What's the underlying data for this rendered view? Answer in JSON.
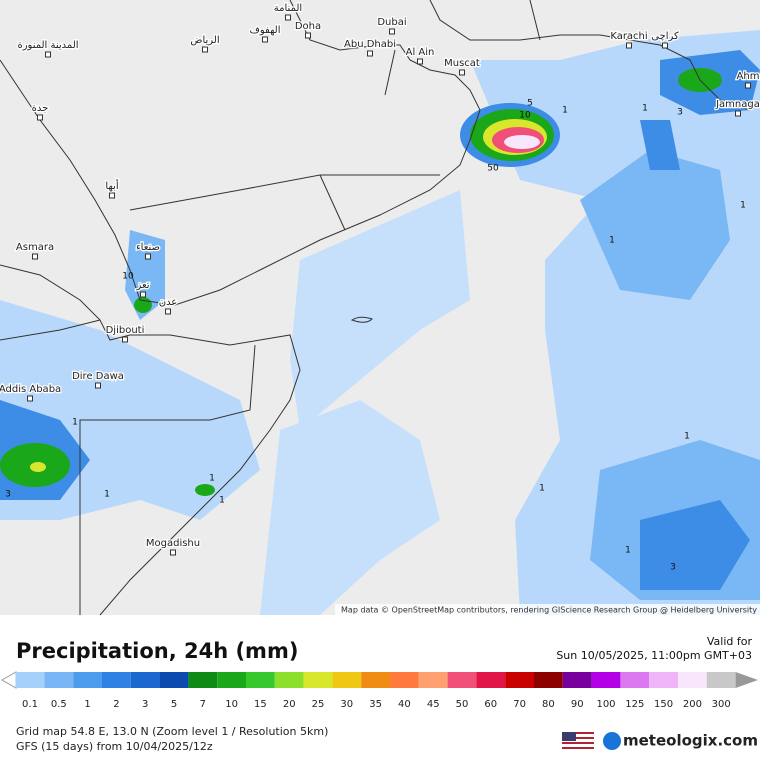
{
  "map": {
    "cities": [
      "المنامة",
      "الهفوف",
      "Doha",
      "الرياض",
      "المدينة المنورة",
      "Dubai",
      "Abu Dhabi",
      "Al Ain",
      "Muscat",
      "Karachi",
      "کراچی",
      "Ahm",
      "Jamnaga",
      "جدة",
      "أبها",
      "صنعاء",
      "Asmara",
      "تعز",
      "عدن",
      "Djibouti",
      "Dire Dawa",
      "Addis Ababa",
      "Mogadishu"
    ],
    "contour_labels": [
      5,
      10,
      50,
      1,
      1,
      3,
      1,
      1,
      1,
      1,
      1,
      3,
      1,
      1,
      1,
      3,
      1,
      10
    ],
    "attribution": "Map data © OpenStreetMap contributors, rendering GIScience Research Group @ Heidelberg University"
  },
  "header": {
    "title": "Precipitation, 24h (mm)",
    "valid_label": "Valid for",
    "valid_time": "Sun 10/05/2025, 11:00pm GMT+03"
  },
  "legend": {
    "values": [
      0.1,
      0.5,
      1,
      2,
      3,
      5,
      7,
      10,
      15,
      20,
      25,
      30,
      35,
      40,
      45,
      50,
      60,
      70,
      80,
      90,
      100,
      125,
      150,
      200,
      300
    ],
    "colors": [
      "#a6d0fc",
      "#78b6f6",
      "#4c9cee",
      "#2f82e4",
      "#1a68d0",
      "#0b4aae",
      "#0f8a14",
      "#1aa81a",
      "#36c82c",
      "#8ce02c",
      "#d8e62c",
      "#f0c814",
      "#f08c14",
      "#ff7a3c",
      "#ffa070",
      "#f05078",
      "#e01446",
      "#c80000",
      "#8c0000",
      "#78009c",
      "#b400e6",
      "#dc78f0",
      "#f0b4f8",
      "#f8e6fc",
      "#c8c8c8"
    ]
  },
  "footer": {
    "grid_info": "Grid map 54.8 E, 13.0 N (Zoom level 1 / Resolution 5km)",
    "model_info": "GFS (15 days) from  10/04/2025/12z",
    "brand": "meteologix.com"
  }
}
